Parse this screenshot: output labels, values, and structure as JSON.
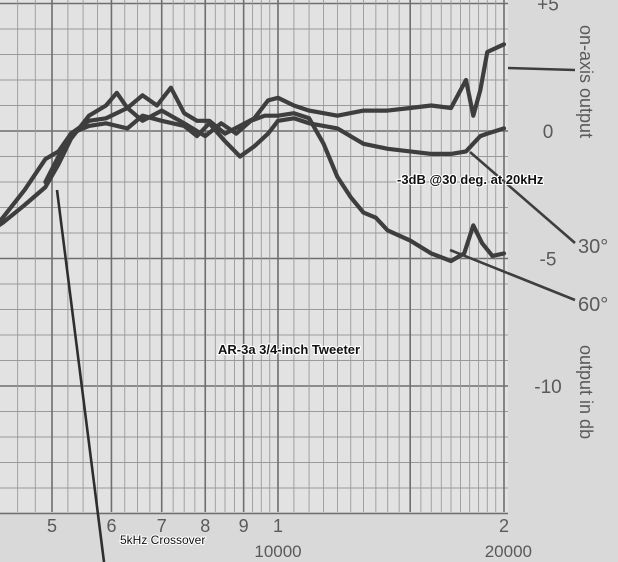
{
  "chart_data": {
    "type": "line",
    "title": "AR-3a 3/4-inch Tweeter",
    "annotations": {
      "note_30deg": "-3dB @30 deg. at 20kHz",
      "crossover": "5kHz Crossover"
    },
    "x_axis": {
      "scale": "log",
      "unit": "Hz",
      "range": [
        4000,
        20000
      ],
      "tick_labels": [
        {
          "label": "5",
          "value": 5000
        },
        {
          "label": "6",
          "value": 6000
        },
        {
          "label": "7",
          "value": 7000
        },
        {
          "label": "8",
          "value": 8000
        },
        {
          "label": "9",
          "value": 9000
        },
        {
          "label": "1",
          "value": 10000
        },
        {
          "label": "2",
          "value": 20000
        }
      ],
      "secondary_labels": [
        {
          "label": "10000",
          "value": 10000
        },
        {
          "label": "20000",
          "value": 20000
        }
      ]
    },
    "y_axis": {
      "range": [
        -15,
        5
      ],
      "ticks": [
        {
          "label": "+5",
          "value": 5
        },
        {
          "label": "0",
          "value": 0
        },
        {
          "label": "-5",
          "value": -5
        },
        {
          "label": "-10",
          "value": -10
        }
      ],
      "label_top": "on-axis output",
      "label_bottom": "output in db"
    },
    "grid": true,
    "series": [
      {
        "name": "on-axis output",
        "x": [
          4000,
          4300,
          4600,
          4900,
          5100,
          5300,
          5600,
          5900,
          6100,
          6300,
          6600,
          6900,
          7200,
          7500,
          7800,
          8100,
          8500,
          8900,
          9300,
          9700,
          10000,
          10500,
          11000,
          12000,
          13000,
          14000,
          15000,
          16000,
          17000,
          17800,
          18200,
          18600,
          19000,
          20000
        ],
        "y": [
          -4.2,
          -3.6,
          -2.9,
          -2.2,
          -1.3,
          -0.3,
          0.6,
          1.0,
          1.5,
          0.9,
          1.4,
          1.0,
          1.7,
          0.7,
          0.4,
          0.4,
          -0.1,
          0.2,
          0.5,
          1.2,
          1.3,
          1.0,
          0.8,
          0.6,
          0.8,
          0.8,
          0.9,
          1.0,
          0.9,
          2.0,
          0.6,
          1.6,
          3.1,
          3.4
        ]
      },
      {
        "name": "30°",
        "x": [
          4900,
          5100,
          5300,
          5600,
          5900,
          6300,
          6600,
          7000,
          7500,
          7800,
          8100,
          8500,
          8900,
          9300,
          9700,
          10000,
          10500,
          11000,
          12000,
          13000,
          14000,
          15000,
          16000,
          17000,
          17800,
          18600,
          19000,
          20000
        ],
        "y": [
          -2.0,
          -1.0,
          -0.1,
          0.2,
          0.3,
          0.1,
          0.6,
          0.4,
          0.2,
          -0.2,
          0.3,
          -0.4,
          -1.0,
          -0.6,
          -0.1,
          0.4,
          0.5,
          0.3,
          0.1,
          -0.5,
          -0.7,
          -0.8,
          -0.9,
          -0.9,
          -0.8,
          -0.2,
          -0.1,
          0.1
        ]
      },
      {
        "name": "60°",
        "x": [
          4000,
          4300,
          4600,
          4900,
          5100,
          5300,
          5600,
          5900,
          6300,
          6600,
          7000,
          7500,
          8000,
          8400,
          8800,
          9200,
          9600,
          10000,
          10500,
          11000,
          11500,
          12000,
          12500,
          13000,
          13500,
          14000,
          15000,
          16000,
          17000,
          17700,
          18200,
          18700,
          19300,
          20000
        ],
        "y": [
          -4.4,
          -3.4,
          -2.3,
          -1.1,
          -0.8,
          -0.1,
          0.4,
          0.5,
          0.9,
          0.4,
          0.8,
          0.3,
          -0.2,
          0.3,
          -0.1,
          0.4,
          0.6,
          0.6,
          0.7,
          0.5,
          -0.5,
          -1.8,
          -2.6,
          -3.2,
          -3.4,
          -3.9,
          -4.3,
          -4.8,
          -5.1,
          -4.8,
          -3.7,
          -4.4,
          -4.9,
          -4.8
        ]
      }
    ]
  }
}
